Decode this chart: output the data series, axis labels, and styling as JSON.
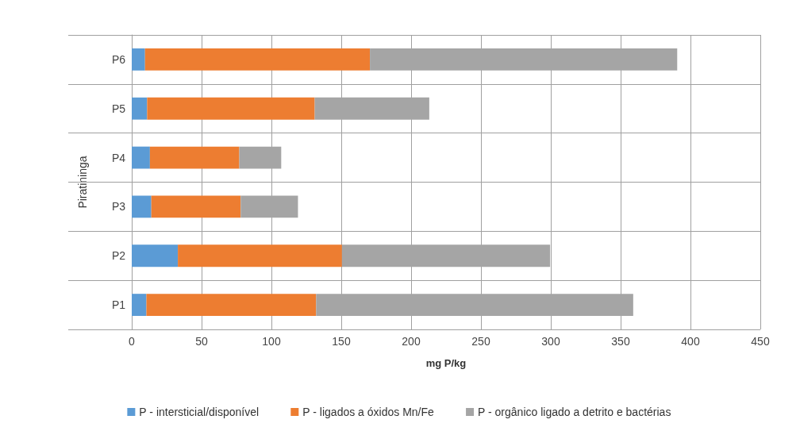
{
  "chart_data": {
    "type": "bar",
    "orientation": "horizontal",
    "stacked": true,
    "xlabel": "mg P/kg",
    "ylabel": "Piratininga",
    "categories": [
      "P6",
      "P5",
      "P4",
      "P3",
      "P2",
      "P1"
    ],
    "series": [
      {
        "name": "P - intersticial/disponível",
        "color": "#5b9bd5",
        "values": [
          9.5,
          11,
          13,
          14,
          33,
          10.5
        ]
      },
      {
        "name": "P - ligados a óxidos Mn/Fe",
        "color": "#ed7d31",
        "values": [
          161,
          120,
          64,
          64,
          117.5,
          121.5
        ]
      },
      {
        "name": "P - orgânico ligado a detrito e bactérias",
        "color": "#a5a5a5",
        "values": [
          220,
          82,
          30,
          41,
          149,
          227
        ]
      }
    ],
    "xlim": [
      0,
      450
    ],
    "xticks": [
      0,
      50,
      100,
      150,
      200,
      250,
      300,
      350,
      400,
      450
    ],
    "grid": true,
    "legend": "bottom"
  }
}
